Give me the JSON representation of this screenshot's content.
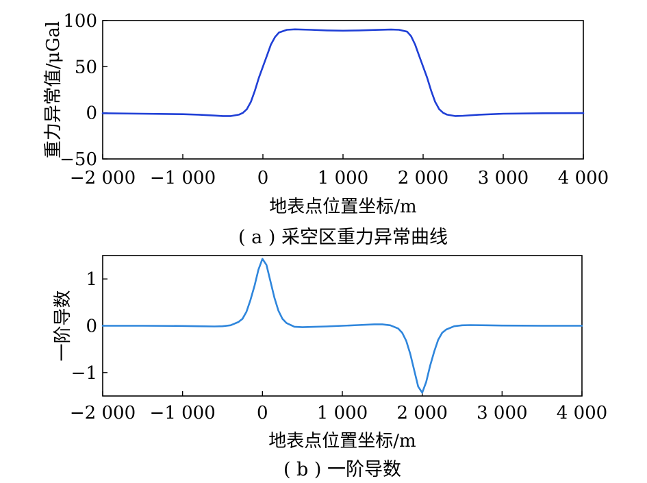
{
  "colors": {
    "panel_a_line": "#1f3fd6",
    "panel_b_line": "#2f86dc",
    "axis": "#000000"
  },
  "chart_data": [
    {
      "type": "line",
      "caption": "( a ) 采空区重力异常曲线",
      "xlabel": "地表点位置坐标/m",
      "ylabel": "重力异常值/μGal",
      "xlim": [
        -2000,
        4000
      ],
      "ylim": [
        -50,
        100
      ],
      "xticks": [
        -2000,
        -1000,
        0,
        1000,
        2000,
        3000,
        4000
      ],
      "xtick_labels": [
        "−2 000",
        "−1 000",
        "0",
        "1 000",
        "2 000",
        "3 000",
        "4 000"
      ],
      "yticks": [
        -50,
        0,
        50,
        100
      ],
      "ytick_labels": [
        "−50",
        "0",
        "50",
        "100"
      ],
      "grid": false,
      "series": [
        {
          "x": [
            -2000,
            -1500,
            -1000,
            -800,
            -600,
            -500,
            -400,
            -300,
            -250,
            -200,
            -150,
            -100,
            -50,
            0,
            50,
            100,
            150,
            200,
            300,
            400,
            600,
            800,
            1000,
            1200,
            1400,
            1600,
            1700,
            1800,
            1850,
            1900,
            1950,
            2000,
            2050,
            2100,
            2150,
            2200,
            2250,
            2300,
            2400,
            2500,
            2700,
            3000,
            3500,
            4000
          ],
          "y": [
            -0.5,
            -1,
            -1.5,
            -2,
            -3,
            -3.5,
            -3.5,
            -2,
            0,
            4,
            12,
            24,
            38,
            50,
            62,
            74,
            82,
            87,
            90,
            90.5,
            90,
            89.3,
            89,
            89.3,
            89.8,
            90.3,
            90,
            88,
            83,
            74,
            62,
            50,
            38,
            24,
            12,
            4,
            0,
            -2,
            -3.5,
            -3.2,
            -2,
            -1,
            -0.5,
            -0.3
          ]
        }
      ]
    },
    {
      "type": "line",
      "caption": "( b ) 一阶导数",
      "xlabel": "地表点位置坐标/m",
      "ylabel": "一阶导数",
      "xlim": [
        -2000,
        4000
      ],
      "ylim": [
        -1.5,
        1.5
      ],
      "xticks": [
        -2000,
        -1000,
        0,
        1000,
        2000,
        3000,
        4000
      ],
      "xtick_labels": [
        "−2 000",
        "−1 000",
        "0",
        "1 000",
        "2 000",
        "3 000",
        "4 000"
      ],
      "yticks": [
        -1,
        0,
        1
      ],
      "ytick_labels": [
        "−1",
        "0",
        "1"
      ],
      "grid": false,
      "series": [
        {
          "x": [
            -2000,
            -1500,
            -1000,
            -800,
            -600,
            -500,
            -400,
            -300,
            -250,
            -200,
            -150,
            -100,
            -50,
            0,
            50,
            100,
            150,
            200,
            250,
            300,
            400,
            500,
            600,
            800,
            1000,
            1200,
            1400,
            1500,
            1600,
            1700,
            1750,
            1800,
            1850,
            1900,
            1950,
            2000,
            2050,
            2100,
            2150,
            2200,
            2250,
            2300,
            2400,
            2500,
            2600,
            2800,
            3000,
            3500,
            4000
          ],
          "y": [
            0,
            0,
            -0.005,
            -0.01,
            -0.015,
            -0.01,
            0.01,
            0.08,
            0.15,
            0.3,
            0.55,
            0.85,
            1.2,
            1.43,
            1.3,
            0.95,
            0.6,
            0.32,
            0.15,
            0.06,
            -0.02,
            -0.03,
            -0.025,
            -0.015,
            0,
            0.015,
            0.03,
            0.03,
            0.01,
            -0.06,
            -0.15,
            -0.32,
            -0.6,
            -0.95,
            -1.3,
            -1.43,
            -1.2,
            -0.85,
            -0.55,
            -0.3,
            -0.15,
            -0.08,
            -0.01,
            0.01,
            0.015,
            0.01,
            0.005,
            0,
            0
          ]
        }
      ]
    }
  ]
}
